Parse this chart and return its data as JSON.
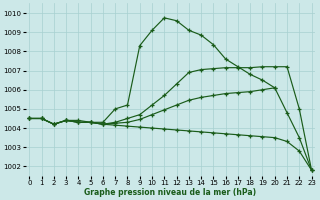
{
  "xlabel": "Graphe pression niveau de la mer (hPa)",
  "ylim": [
    1001.5,
    1010.5
  ],
  "xlim": [
    -0.3,
    23.3
  ],
  "yticks": [
    1002,
    1003,
    1004,
    1005,
    1006,
    1007,
    1008,
    1009,
    1010
  ],
  "xticks": [
    0,
    1,
    2,
    3,
    4,
    5,
    6,
    7,
    8,
    9,
    10,
    11,
    12,
    13,
    14,
    15,
    16,
    17,
    18,
    19,
    20,
    21,
    22,
    23
  ],
  "bg_color": "#cce8e8",
  "grid_color": "#a8d0d0",
  "line_color": "#1a5c1a",
  "line1_x": [
    0,
    1,
    2,
    3,
    4,
    5,
    6,
    7,
    8,
    9,
    10,
    11,
    12,
    13,
    14,
    15,
    16,
    17,
    18,
    19,
    20
  ],
  "line1_y": [
    1004.5,
    1004.5,
    1004.2,
    1004.4,
    1004.4,
    1004.3,
    1004.3,
    1005.0,
    1005.2,
    1008.3,
    1009.1,
    1009.75,
    1009.6,
    1009.1,
    1008.85,
    1008.35,
    1007.6,
    1007.2,
    1006.8,
    1006.5,
    1006.1
  ],
  "line2_x": [
    0,
    1,
    2,
    3,
    4,
    5,
    6,
    7,
    8,
    9,
    10,
    11,
    12,
    13,
    14,
    15,
    16,
    17,
    18,
    19,
    20,
    21,
    22,
    23
  ],
  "line2_y": [
    1004.5,
    1004.5,
    1004.2,
    1004.4,
    1004.3,
    1004.3,
    1004.2,
    1004.3,
    1004.5,
    1004.7,
    1005.2,
    1005.7,
    1006.3,
    1006.9,
    1007.05,
    1007.1,
    1007.15,
    1007.15,
    1007.15,
    1007.2,
    1007.2,
    1007.2,
    1005.0,
    1001.8
  ],
  "line3_x": [
    0,
    1,
    2,
    3,
    4,
    5,
    6,
    7,
    8,
    9,
    10,
    11,
    12,
    13,
    14,
    15,
    16,
    17,
    18,
    19,
    20,
    21,
    22,
    23
  ],
  "line3_y": [
    1004.5,
    1004.5,
    1004.2,
    1004.4,
    1004.3,
    1004.3,
    1004.2,
    1004.25,
    1004.3,
    1004.45,
    1004.7,
    1004.95,
    1005.2,
    1005.45,
    1005.6,
    1005.7,
    1005.8,
    1005.85,
    1005.9,
    1006.0,
    1006.1,
    1004.8,
    1003.5,
    1001.8
  ],
  "line4_x": [
    0,
    1,
    2,
    3,
    4,
    5,
    6,
    7,
    8,
    9,
    10,
    11,
    12,
    13,
    14,
    15,
    16,
    17,
    18,
    19,
    20,
    21,
    22,
    23
  ],
  "line4_y": [
    1004.5,
    1004.5,
    1004.2,
    1004.4,
    1004.3,
    1004.3,
    1004.2,
    1004.15,
    1004.1,
    1004.05,
    1004.0,
    1003.95,
    1003.9,
    1003.85,
    1003.8,
    1003.75,
    1003.7,
    1003.65,
    1003.6,
    1003.55,
    1003.5,
    1003.3,
    1002.8,
    1001.8
  ]
}
